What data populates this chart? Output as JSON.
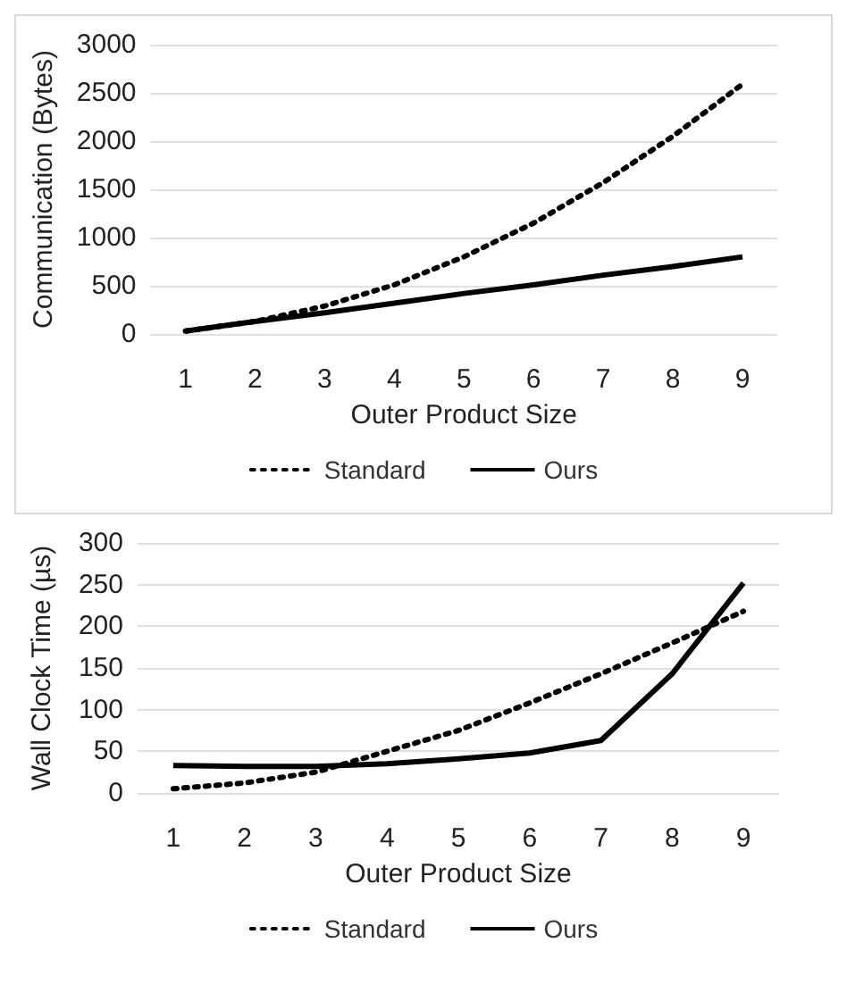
{
  "chart_data": [
    {
      "type": "line",
      "xlabel": "Outer Product Size",
      "ylabel": "Communication (Bytes)",
      "categories": [
        "1",
        "2",
        "3",
        "4",
        "5",
        "6",
        "7",
        "8",
        "9"
      ],
      "series": [
        {
          "name": "Standard",
          "color": "#000000",
          "line_style": "dotted",
          "values": [
            30,
            130,
            290,
            510,
            800,
            1150,
            1570,
            2050,
            2590
          ]
        },
        {
          "name": "Ours",
          "color": "#000000",
          "line_style": "solid",
          "values": [
            30,
            130,
            220,
            320,
            420,
            510,
            610,
            700,
            800
          ]
        }
      ],
      "ylim": [
        0,
        3000
      ],
      "yticks": [
        0,
        500,
        1000,
        1500,
        2000,
        2500,
        3000
      ],
      "grid": "y",
      "legend": "bottom",
      "marker": "none"
    },
    {
      "type": "line",
      "xlabel": "Outer Product Size",
      "ylabel": "Wall Clock Time (µs)",
      "categories": [
        "1",
        "2",
        "3",
        "4",
        "5",
        "6",
        "7",
        "8",
        "9"
      ],
      "series": [
        {
          "name": "Standard",
          "color": "#000000",
          "line_style": "dotted",
          "values": [
            5,
            12,
            25,
            50,
            75,
            108,
            143,
            180,
            218
          ]
        },
        {
          "name": "Ours",
          "color": "#000000",
          "line_style": "solid",
          "values": [
            33,
            32,
            32,
            35,
            41,
            48,
            63,
            143,
            252
          ]
        }
      ],
      "ylim": [
        0,
        300
      ],
      "yticks": [
        0,
        50,
        100,
        150,
        200,
        250,
        300
      ],
      "grid": "y",
      "legend": "bottom",
      "marker": "none"
    }
  ]
}
